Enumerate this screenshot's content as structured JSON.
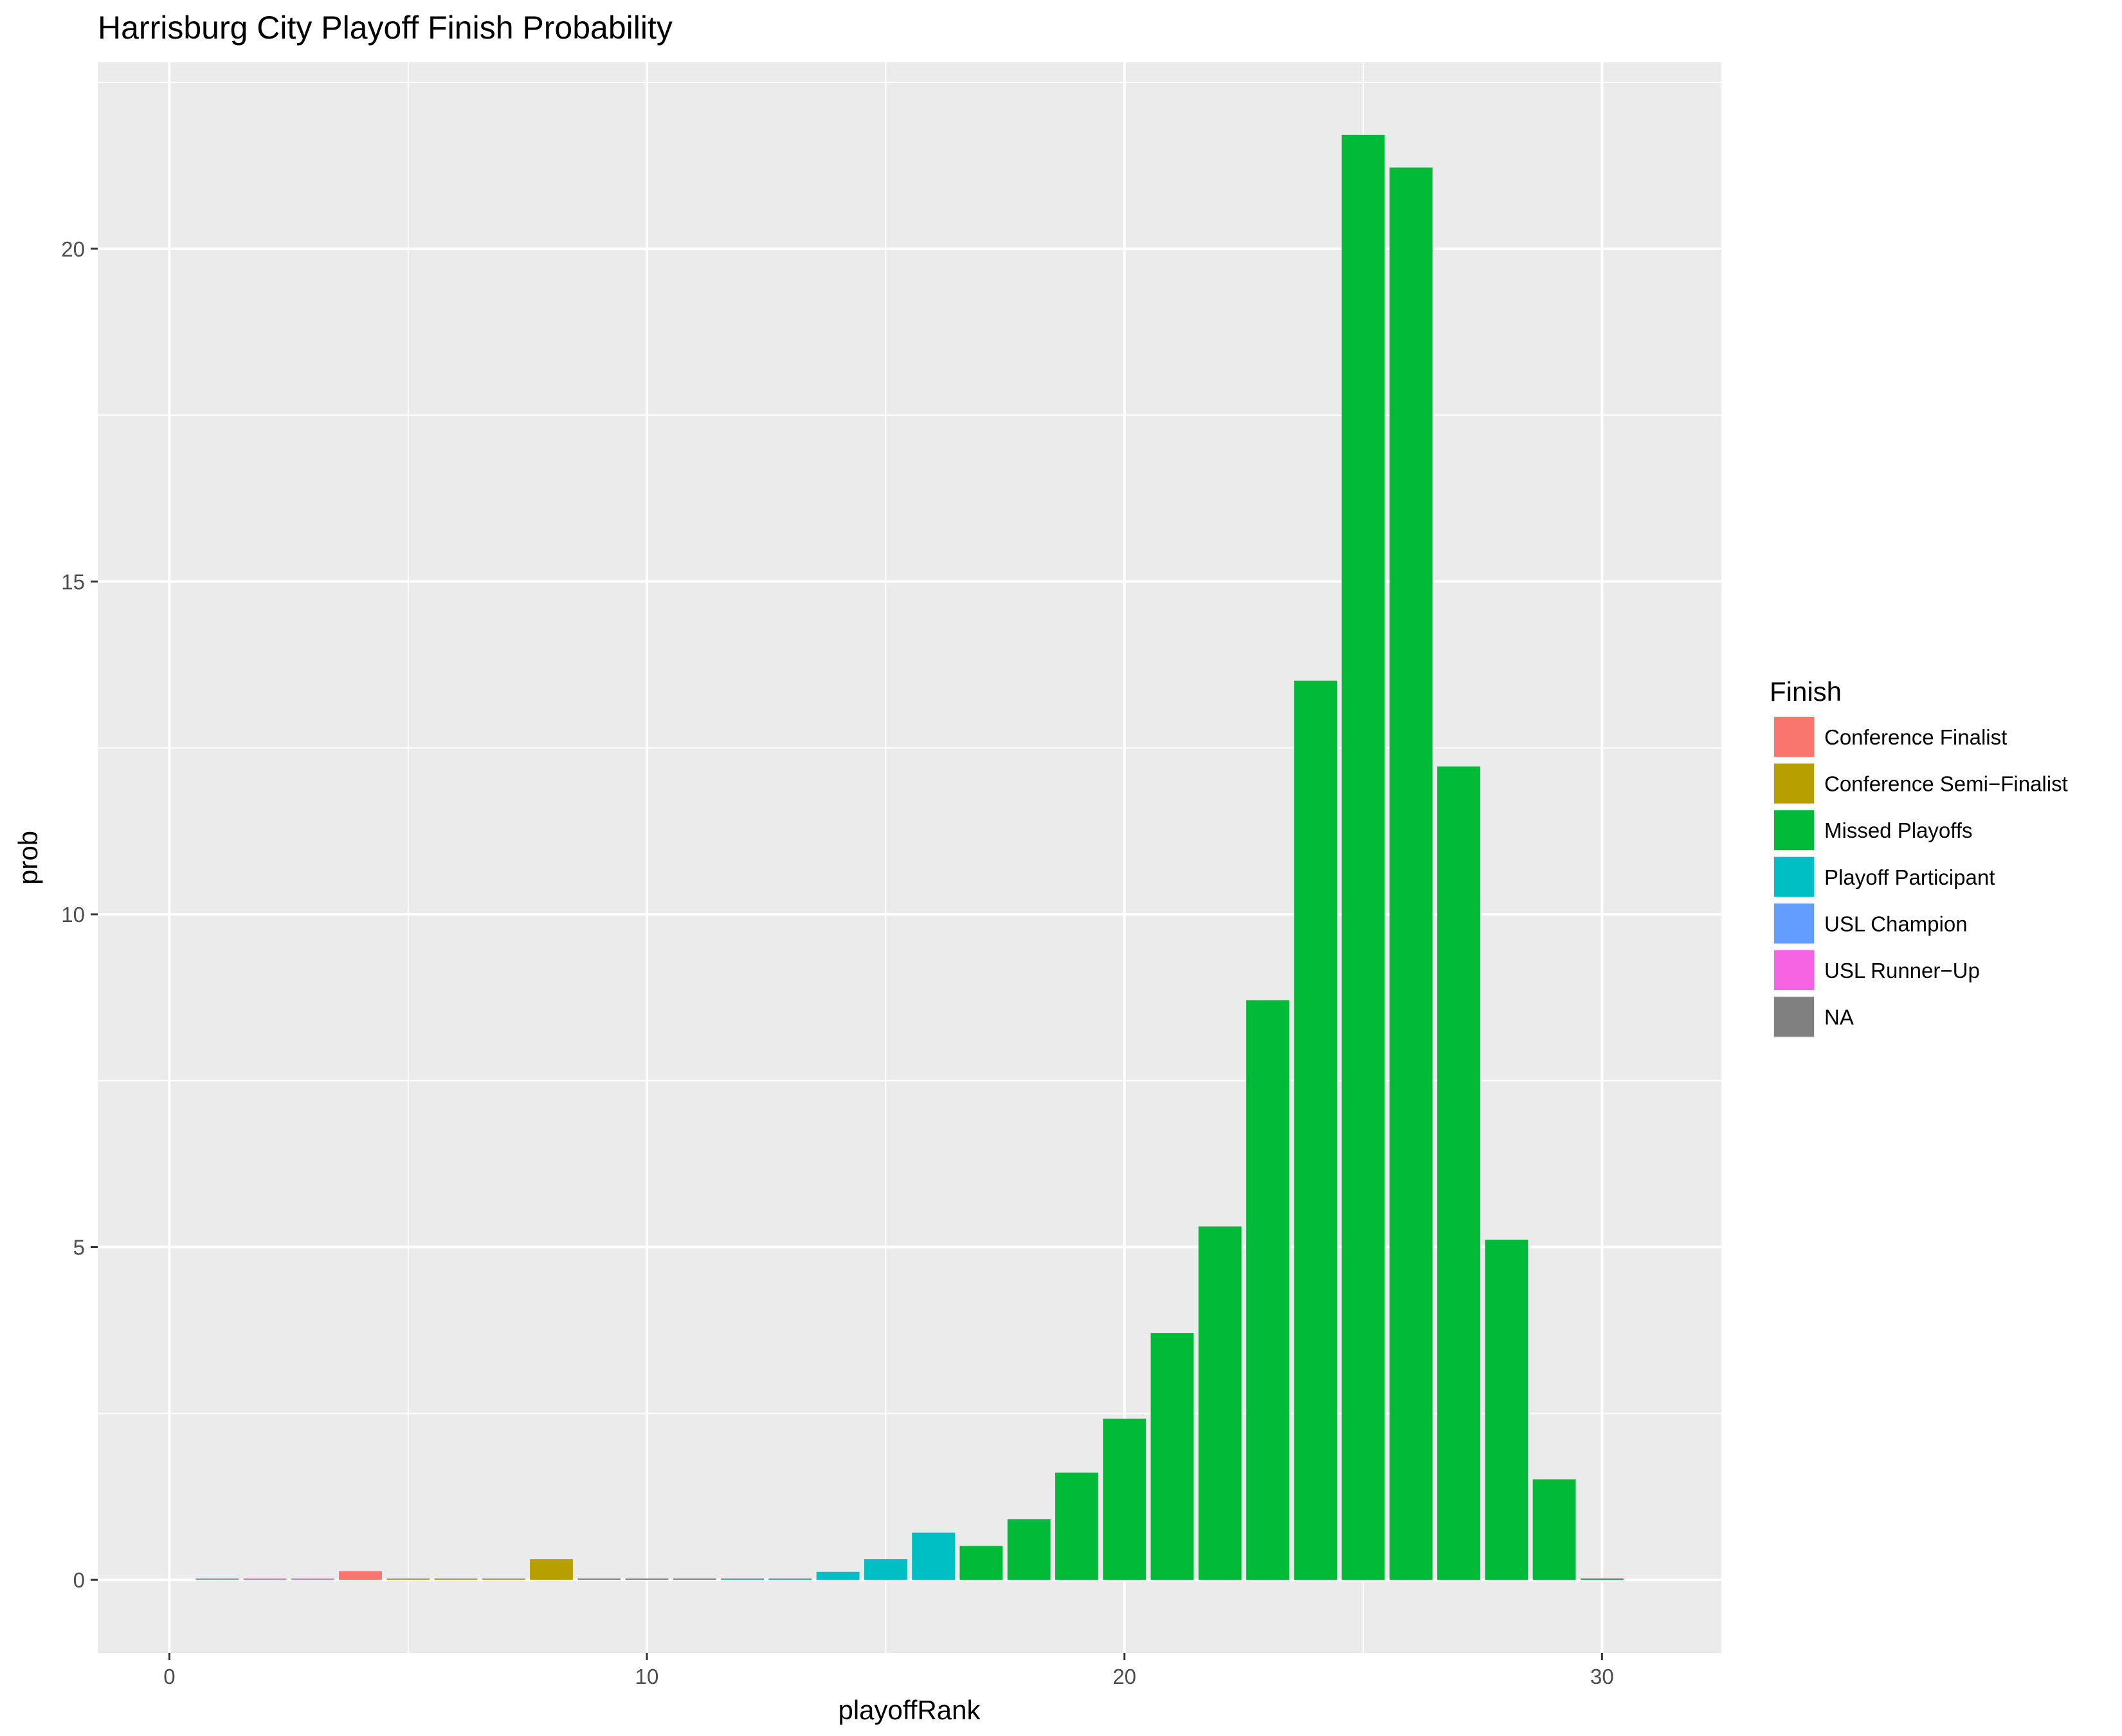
{
  "chart_data": {
    "type": "bar",
    "title": "Harrisburg City Playoff Finish Probability",
    "xlabel": "playoffRank",
    "ylabel": "prob",
    "xlim": [
      -1.5,
      32.5
    ],
    "ylim": [
      -1.1,
      22.8
    ],
    "xticks": [
      0,
      10,
      20,
      30
    ],
    "yticks": [
      0,
      5,
      10,
      15,
      20
    ],
    "grid": true,
    "legend": {
      "title": "Finish",
      "position": "right",
      "entries": [
        {
          "label": "Conference Finalist",
          "color": "#F8766D"
        },
        {
          "label": "Conference Semi−Finalist",
          "color": "#B79F00"
        },
        {
          "label": "Missed Playoffs",
          "color": "#00BA38"
        },
        {
          "label": "Playoff Participant",
          "color": "#00BFC4"
        },
        {
          "label": "USL Champion",
          "color": "#619CFF"
        },
        {
          "label": "USL Runner−Up",
          "color": "#F564E3"
        },
        {
          "label": "NA",
          "color": "#808080"
        }
      ]
    },
    "bars": [
      {
        "x": 1,
        "y": 0.02,
        "finish": "USL Champion"
      },
      {
        "x": 2,
        "y": 0.02,
        "finish": "USL Runner−Up"
      },
      {
        "x": 3,
        "y": 0.02,
        "finish": "USL Runner−Up"
      },
      {
        "x": 4,
        "y": 0.13,
        "finish": "Conference Finalist"
      },
      {
        "x": 5,
        "y": 0.02,
        "finish": "Conference Semi−Finalist"
      },
      {
        "x": 6,
        "y": 0.02,
        "finish": "Conference Semi−Finalist"
      },
      {
        "x": 7,
        "y": 0.02,
        "finish": "Conference Semi−Finalist"
      },
      {
        "x": 8,
        "y": 0.31,
        "finish": "Conference Semi−Finalist"
      },
      {
        "x": 9,
        "y": 0.02,
        "finish": "NA"
      },
      {
        "x": 10,
        "y": 0.02,
        "finish": "NA"
      },
      {
        "x": 11,
        "y": 0.02,
        "finish": "NA"
      },
      {
        "x": 12,
        "y": 0.02,
        "finish": "Playoff Participant"
      },
      {
        "x": 13,
        "y": 0.02,
        "finish": "Playoff Participant"
      },
      {
        "x": 14,
        "y": 0.12,
        "finish": "Playoff Participant"
      },
      {
        "x": 15,
        "y": 0.31,
        "finish": "Playoff Participant"
      },
      {
        "x": 16,
        "y": 0.71,
        "finish": "Playoff Participant"
      },
      {
        "x": 17,
        "y": 0.51,
        "finish": "Missed Playoffs"
      },
      {
        "x": 18,
        "y": 0.91,
        "finish": "Missed Playoffs"
      },
      {
        "x": 19,
        "y": 1.61,
        "finish": "Missed Playoffs"
      },
      {
        "x": 20,
        "y": 2.42,
        "finish": "Missed Playoffs"
      },
      {
        "x": 21,
        "y": 3.71,
        "finish": "Missed Playoffs"
      },
      {
        "x": 22,
        "y": 5.31,
        "finish": "Missed Playoffs"
      },
      {
        "x": 23,
        "y": 8.71,
        "finish": "Missed Playoffs"
      },
      {
        "x": 24,
        "y": 13.51,
        "finish": "Missed Playoffs"
      },
      {
        "x": 25,
        "y": 21.71,
        "finish": "Missed Playoffs"
      },
      {
        "x": 26,
        "y": 21.22,
        "finish": "Missed Playoffs"
      },
      {
        "x": 27,
        "y": 12.22,
        "finish": "Missed Playoffs"
      },
      {
        "x": 28,
        "y": 5.11,
        "finish": "Missed Playoffs"
      },
      {
        "x": 29,
        "y": 1.51,
        "finish": "Missed Playoffs"
      },
      {
        "x": 30,
        "y": 0.02,
        "finish": "Missed Playoffs"
      }
    ]
  }
}
